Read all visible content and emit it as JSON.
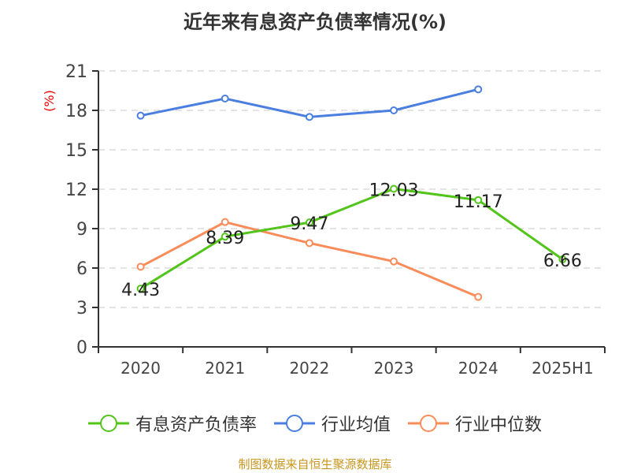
{
  "chart_data": {
    "type": "line",
    "title": "近年来有息资产负债率情况(%)",
    "ylabel": "(%)",
    "categories": [
      "2020",
      "2021",
      "2022",
      "2023",
      "2024",
      "2025H1"
    ],
    "ylim": [
      0,
      21
    ],
    "yticks": [
      0,
      3,
      6,
      9,
      12,
      15,
      18,
      21
    ],
    "grid": true,
    "legend_position": "bottom",
    "series": [
      {
        "name": "有息资产负债率",
        "color": "#52c41a",
        "values": [
          4.43,
          8.39,
          9.47,
          12.03,
          11.17,
          6.66
        ],
        "labels": [
          "4.43",
          "8.39",
          "9.47",
          "12.03",
          "11.17",
          "6.66"
        ]
      },
      {
        "name": "行业均值",
        "color": "#4a7fe0",
        "values": [
          17.6,
          18.9,
          17.5,
          18.0,
          19.6,
          null
        ]
      },
      {
        "name": "行业中位数",
        "color": "#fa8c5a",
        "values": [
          6.1,
          9.5,
          7.9,
          6.5,
          3.8,
          null
        ]
      }
    ]
  },
  "footer": "制图数据来自恒生聚源数据库"
}
